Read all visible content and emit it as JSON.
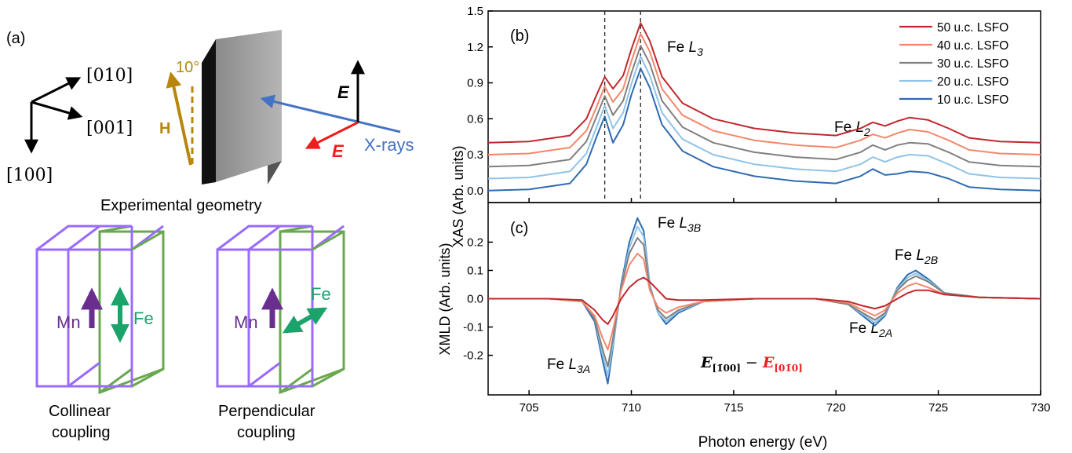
{
  "panel_a": {
    "label": "(a)",
    "axis_labels": {
      "a010": "[010]",
      "a001": "[001]",
      "a100": "[100]"
    },
    "angle_label": "10°",
    "field_label": "H",
    "efield_label": "E",
    "xray_label": "X-rays",
    "geometry_caption": "Experimental geometry",
    "collinear": {
      "mn_label": "Mn",
      "fe_label": "Fe",
      "caption_line1": "Collinear",
      "caption_line2": "coupling"
    },
    "perpendicular": {
      "mn_label": "Mn",
      "fe_label": "Fe",
      "caption_line1": "Perpendicular",
      "caption_line2": "coupling"
    },
    "colors": {
      "axes": "#000000",
      "gold": "#b8860b",
      "red": "#ee1c1c",
      "blue": "#4472c4",
      "purple": "#9b6bff",
      "green": "#6aa84f",
      "mn_arrow": "#6a2e8f",
      "fe_arrow": "#1aa36b"
    }
  },
  "chart_data": [
    {
      "type": "line",
      "panel": "(b)",
      "title": "",
      "xlabel": "",
      "ylabel": "XAS (Arb. units)",
      "xlim": [
        703,
        730
      ],
      "ylim": [
        -0.1,
        1.5
      ],
      "yticks": [
        "0.0",
        "0.3",
        "0.6",
        "0.9",
        "1.2",
        "1.5"
      ],
      "grid": false,
      "legend_position": "top-right",
      "dashed_lines_x": [
        708.7,
        710.45
      ],
      "annotations": {
        "fe_l3_main": "Fe ",
        "fe_l3_sub": "L",
        "fe_l3_idx": "3",
        "fe_l2_main": "Fe ",
        "fe_l2_sub": "L",
        "fe_l2_idx": "2"
      },
      "x": [
        703,
        705,
        707,
        707.8,
        708.3,
        708.7,
        709.1,
        709.6,
        710.0,
        710.45,
        710.9,
        711.5,
        712.5,
        714,
        716,
        718,
        720,
        721.2,
        721.8,
        722.4,
        723.0,
        723.6,
        724.5,
        725.5,
        726.5,
        728,
        730
      ],
      "series": [
        {
          "name": "50 u.c. LSFO",
          "color": "#c0282d",
          "offset": 0.4,
          "values": [
            0.0,
            0.01,
            0.06,
            0.2,
            0.4,
            0.55,
            0.45,
            0.56,
            0.78,
            1.0,
            0.85,
            0.55,
            0.33,
            0.2,
            0.12,
            0.08,
            0.06,
            0.12,
            0.17,
            0.14,
            0.18,
            0.21,
            0.19,
            0.12,
            0.04,
            0.01,
            0.0
          ]
        },
        {
          "name": "40 u.c. LSFO",
          "color": "#f4876a",
          "offset": 0.3,
          "values": [
            0.0,
            0.01,
            0.06,
            0.2,
            0.4,
            0.57,
            0.44,
            0.55,
            0.78,
            1.01,
            0.86,
            0.55,
            0.33,
            0.2,
            0.12,
            0.08,
            0.06,
            0.12,
            0.17,
            0.14,
            0.18,
            0.21,
            0.19,
            0.12,
            0.04,
            0.01,
            0.0
          ]
        },
        {
          "name": "30 u.c. LSFO",
          "color": "#808080",
          "offset": 0.2,
          "values": [
            0.0,
            0.01,
            0.06,
            0.21,
            0.42,
            0.59,
            0.43,
            0.55,
            0.78,
            1.01,
            0.86,
            0.55,
            0.33,
            0.2,
            0.12,
            0.08,
            0.06,
            0.12,
            0.18,
            0.14,
            0.18,
            0.2,
            0.19,
            0.12,
            0.04,
            0.01,
            0.0
          ]
        },
        {
          "name": "20 u.c. LSFO",
          "color": "#8fc3e8",
          "offset": 0.1,
          "values": [
            0.0,
            0.01,
            0.06,
            0.21,
            0.43,
            0.61,
            0.42,
            0.55,
            0.79,
            1.02,
            0.86,
            0.55,
            0.33,
            0.2,
            0.12,
            0.08,
            0.06,
            0.12,
            0.18,
            0.14,
            0.18,
            0.2,
            0.19,
            0.12,
            0.04,
            0.01,
            0.0
          ]
        },
        {
          "name": "10 u.c. LSFO",
          "color": "#2f6bb0",
          "offset": 0.0,
          "values": [
            0.0,
            0.01,
            0.06,
            0.22,
            0.45,
            0.62,
            0.4,
            0.55,
            0.8,
            1.02,
            0.86,
            0.55,
            0.33,
            0.2,
            0.12,
            0.08,
            0.06,
            0.12,
            0.18,
            0.13,
            0.14,
            0.16,
            0.15,
            0.1,
            0.03,
            0.01,
            0.0
          ]
        }
      ]
    },
    {
      "type": "line",
      "panel": "(c)",
      "title": "",
      "xlabel": "Photon energy (eV)",
      "ylabel": "XMLD (Arb. units)",
      "xlim": [
        703,
        730
      ],
      "ylim": [
        -0.34,
        0.34
      ],
      "yticks": [
        "-0.2",
        "-0.1",
        "0.0",
        "0.1",
        "0.2"
      ],
      "xticks": [
        "705",
        "710",
        "715",
        "720",
        "725",
        "730"
      ],
      "grid": false,
      "annotations": {
        "fe_l3b_main": "Fe ",
        "fe_l3b_sub": "L",
        "fe_l3b_idx": "3B",
        "fe_l3a_main": "Fe ",
        "fe_l3a_sub": "L",
        "fe_l3a_idx": "3A",
        "fe_l2b_main": "Fe ",
        "fe_l2b_sub": "L",
        "fe_l2b_idx": "2B",
        "fe_l2a_main": "Fe ",
        "fe_l2a_sub": "L",
        "fe_l2a_idx": "2A",
        "formula_left": "E",
        "formula_left_sub": "[1̄00]",
        "formula_minus": " − ",
        "formula_right": "E",
        "formula_right_sub": "[01̄0]"
      },
      "x": [
        703,
        706,
        707.6,
        708.2,
        708.6,
        708.85,
        709.1,
        709.5,
        709.9,
        710.3,
        710.6,
        710.9,
        711.3,
        711.7,
        712.3,
        713.5,
        716,
        719,
        720.6,
        721.3,
        721.9,
        722.4,
        723.0,
        723.5,
        723.9,
        724.5,
        725.3,
        727,
        730
      ],
      "series": [
        {
          "name": "10 u.c. LSFO",
          "color": "#2f6bb0",
          "values": [
            0.0,
            0.0,
            -0.01,
            -0.08,
            -0.22,
            -0.3,
            -0.17,
            0.05,
            0.2,
            0.285,
            0.24,
            0.05,
            -0.05,
            -0.09,
            -0.05,
            -0.01,
            0.0,
            0.0,
            -0.02,
            -0.06,
            -0.095,
            -0.06,
            0.04,
            0.085,
            0.1,
            0.07,
            0.02,
            0.005,
            0.0
          ]
        },
        {
          "name": "20 u.c. LSFO",
          "color": "#8fc3e8",
          "values": [
            0.0,
            0.0,
            -0.01,
            -0.07,
            -0.2,
            -0.27,
            -0.16,
            0.04,
            0.18,
            0.255,
            0.22,
            0.05,
            -0.05,
            -0.08,
            -0.045,
            -0.01,
            0.0,
            0.0,
            -0.02,
            -0.055,
            -0.085,
            -0.055,
            0.035,
            0.075,
            0.09,
            0.065,
            0.02,
            0.005,
            0.0
          ]
        },
        {
          "name": "30 u.c. LSFO",
          "color": "#808080",
          "values": [
            0.0,
            0.0,
            -0.01,
            -0.07,
            -0.18,
            -0.24,
            -0.14,
            0.04,
            0.16,
            0.215,
            0.19,
            0.04,
            -0.04,
            -0.07,
            -0.04,
            -0.01,
            0.0,
            0.0,
            -0.02,
            -0.05,
            -0.075,
            -0.05,
            0.03,
            0.065,
            0.08,
            0.06,
            0.02,
            0.005,
            0.0
          ]
        },
        {
          "name": "40 u.c. LSFO",
          "color": "#f4876a",
          "values": [
            0.0,
            0.0,
            -0.01,
            -0.06,
            -0.14,
            -0.18,
            -0.11,
            0.03,
            0.12,
            0.16,
            0.14,
            0.03,
            -0.03,
            -0.05,
            -0.03,
            -0.01,
            0.0,
            0.0,
            -0.015,
            -0.04,
            -0.06,
            -0.04,
            0.02,
            0.045,
            0.055,
            0.04,
            0.015,
            0.005,
            0.0
          ]
        },
        {
          "name": "50 u.c. LSFO",
          "color": "#c0282d",
          "values": [
            0.0,
            0.0,
            -0.005,
            -0.04,
            -0.075,
            -0.09,
            -0.06,
            0.0,
            0.04,
            0.065,
            0.075,
            0.06,
            0.03,
            0.0,
            -0.005,
            -0.005,
            0.0,
            0.0,
            -0.01,
            -0.025,
            -0.035,
            -0.025,
            0.0,
            0.02,
            0.03,
            0.03,
            0.015,
            0.005,
            0.0
          ]
        }
      ]
    }
  ]
}
